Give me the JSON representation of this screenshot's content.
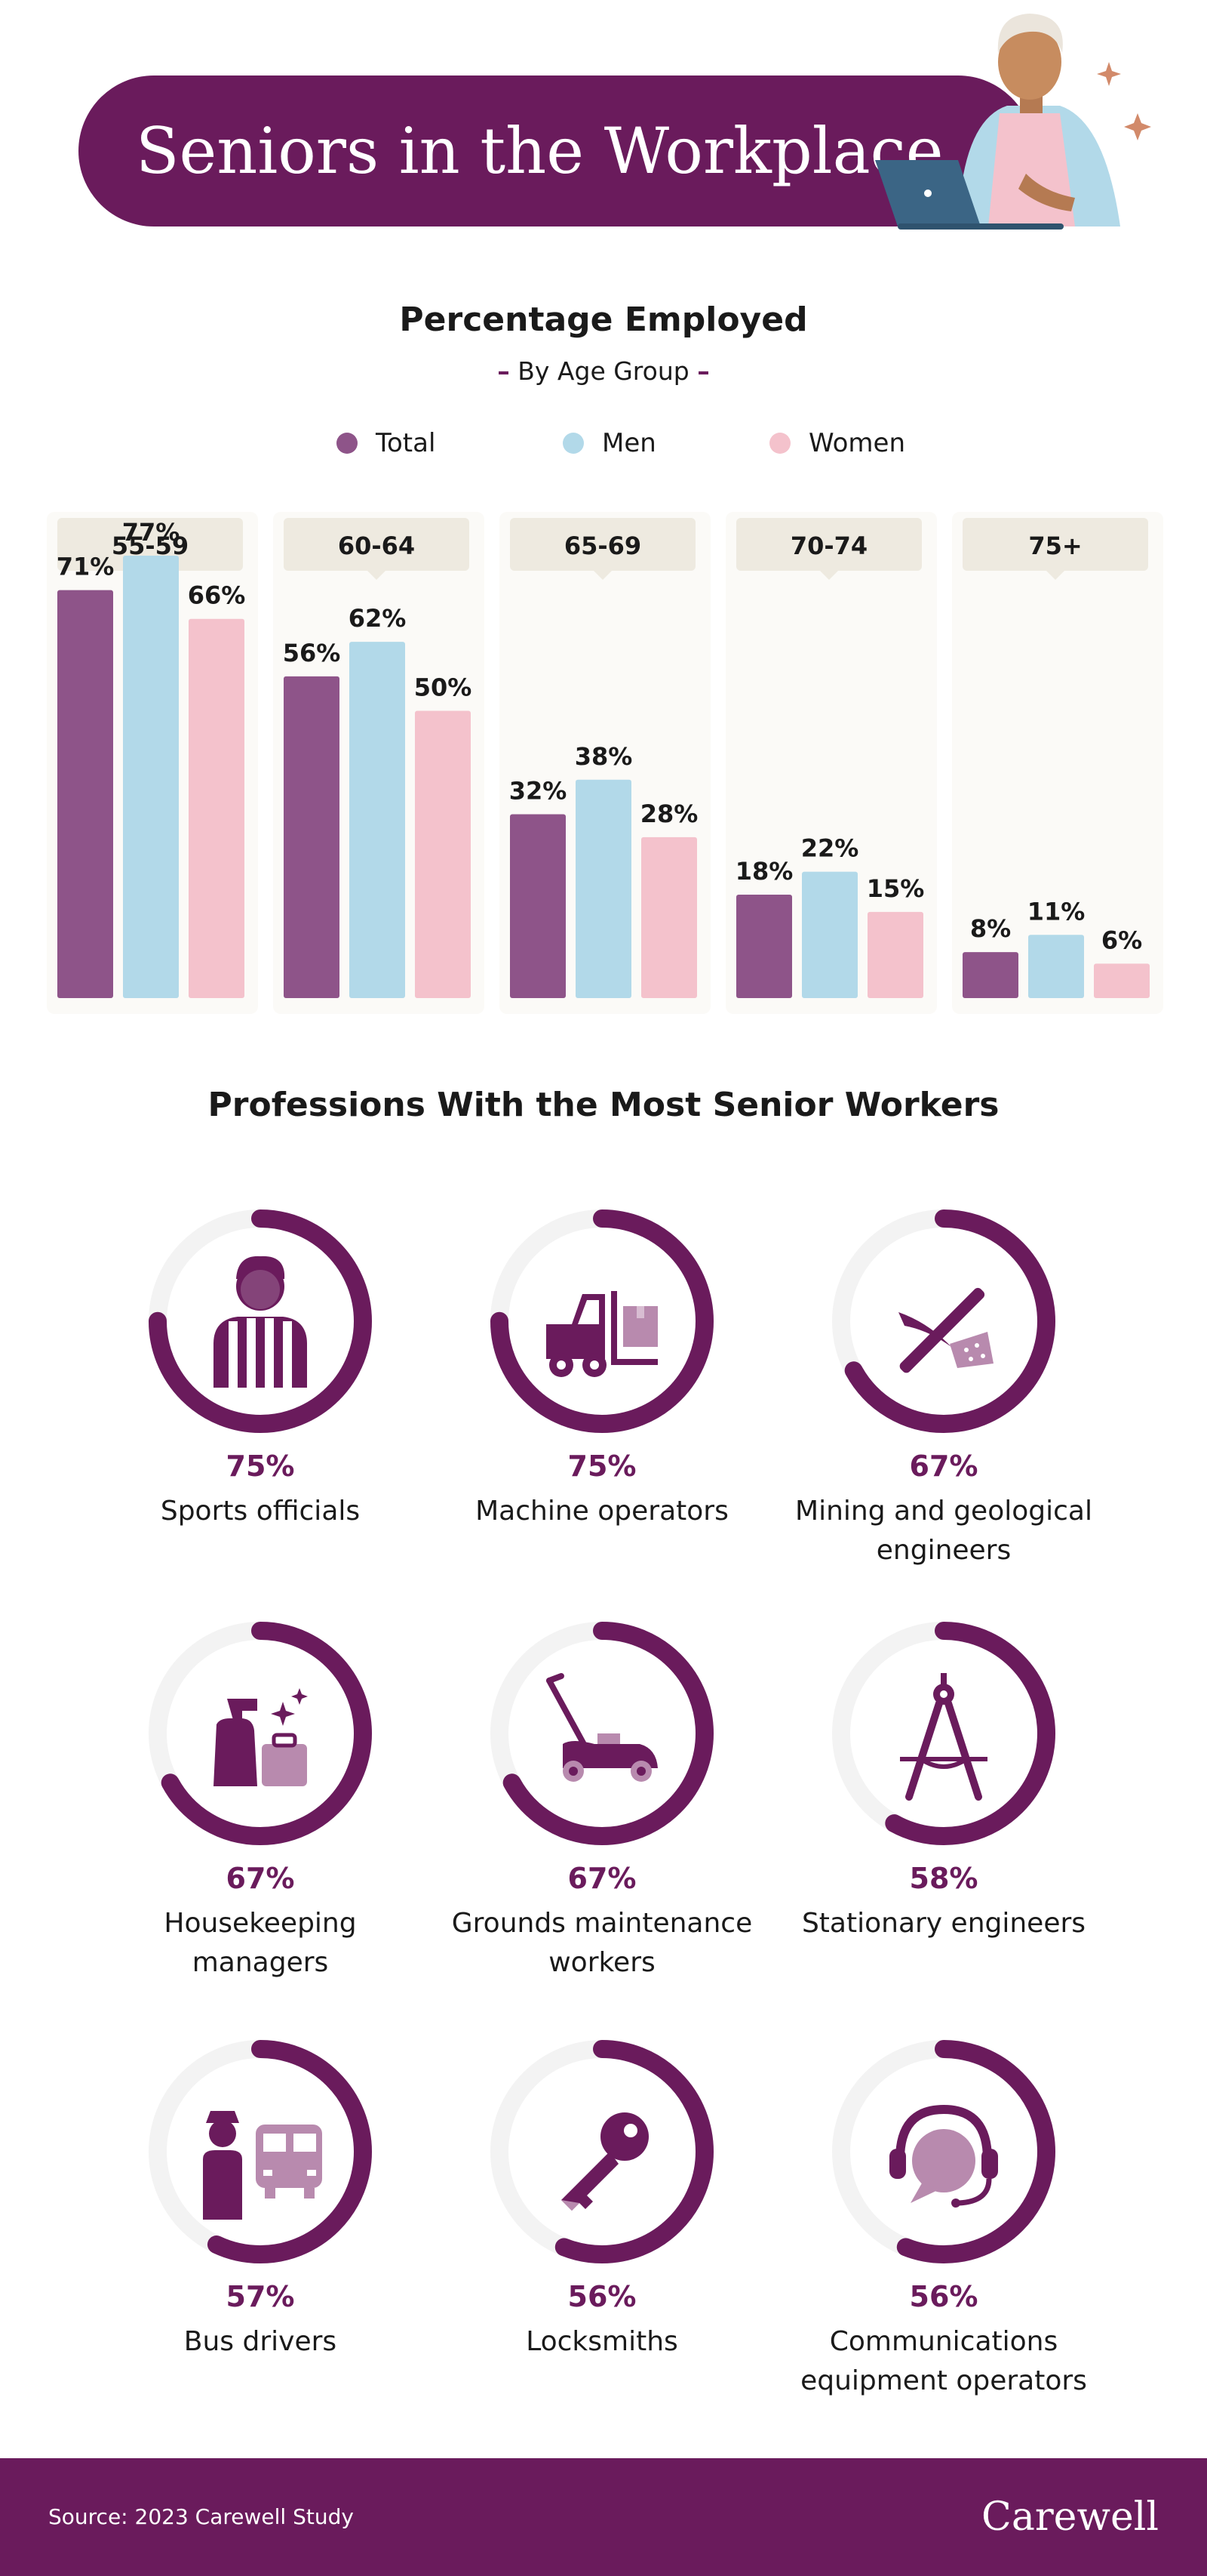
{
  "header": {
    "title": "Seniors in the Workplace"
  },
  "colors": {
    "brand": "#6a1b5c",
    "total": "#8e5489",
    "men": "#b2d9e9",
    "women": "#f4c2cc",
    "track": "#f3f3f3",
    "group_bg": "#fbfaf7",
    "group_label_bg": "#eeeae0",
    "accent_star": "#d28a6a"
  },
  "chart_data": [
    {
      "type": "bar",
      "title": "Percentage Employed",
      "subtitle": "By Age Group",
      "categories": [
        "55-59",
        "60-64",
        "65-69",
        "70-74",
        "75+"
      ],
      "series": [
        {
          "name": "Total",
          "values": [
            71,
            56,
            32,
            18,
            8
          ]
        },
        {
          "name": "Men",
          "values": [
            77,
            62,
            38,
            22,
            11
          ]
        },
        {
          "name": "Women",
          "values": [
            66,
            50,
            28,
            15,
            6
          ]
        }
      ],
      "value_suffix": "%",
      "ylim": [
        0,
        100
      ],
      "legend_position": "top",
      "grid": false
    },
    {
      "type": "pie",
      "title": "Professions With the Most Senior Workers",
      "items": [
        {
          "label": "Sports officials",
          "value": 75,
          "display": "75%",
          "icon": "referee-icon"
        },
        {
          "label": "Machine operators",
          "value": 75,
          "display": "75%",
          "icon": "forklift-icon"
        },
        {
          "label": "Mining and geological engineers",
          "value": 67,
          "display": "67%",
          "icon": "pickaxe-icon"
        },
        {
          "label": "Housekeeping managers",
          "value": 67,
          "display": "67%",
          "icon": "cleaning-supplies-icon"
        },
        {
          "label": "Grounds maintenance workers",
          "value": 67,
          "display": "67%",
          "icon": "lawn-mower-icon"
        },
        {
          "label": "Stationary engineers",
          "value": 58,
          "display": "58%",
          "icon": "compass-icon"
        },
        {
          "label": "Bus drivers",
          "value": 57,
          "display": "57%",
          "icon": "bus-driver-icon"
        },
        {
          "label": "Locksmiths",
          "value": 56,
          "display": "56%",
          "icon": "key-icon"
        },
        {
          "label": "Communications equipment operators",
          "value": 56,
          "display": "56%",
          "icon": "headset-icon"
        }
      ]
    }
  ],
  "footer": {
    "source": "Source: 2023 Carewell Study",
    "brand": "Carewell"
  }
}
